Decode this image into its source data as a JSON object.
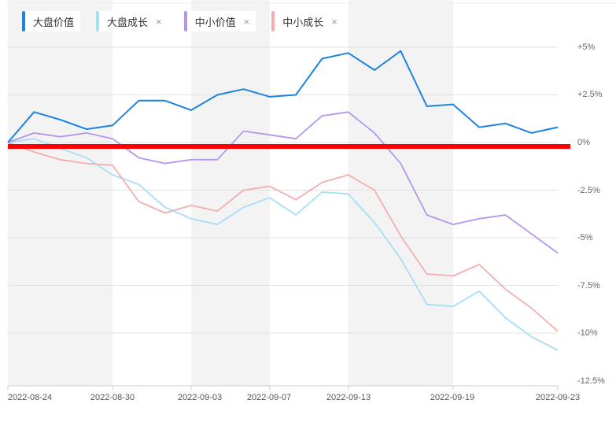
{
  "legend": [
    {
      "label": "大盘价值",
      "color": "#1a84e0",
      "closable": false
    },
    {
      "label": "大盘成长",
      "color": "#a6def7",
      "closable": true
    },
    {
      "label": "中小价值",
      "color": "#b497ea",
      "closable": true
    },
    {
      "label": "中小成长",
      "color": "#f4aeae",
      "closable": true
    }
  ],
  "close_glyph": "×",
  "colors": {
    "zero_line": "#ff0000",
    "band": "#f3f3f3",
    "grid": "#e2e2e2"
  },
  "y_ticks": [
    "+5%",
    "+2.5%",
    "0%",
    "-2.5%",
    "-5%",
    "-7.5%",
    "-10%",
    "-12.5%"
  ],
  "x_ticks": [
    "2022-08-24",
    "2022-08-30",
    "2022-09-03",
    "2022-09-07",
    "2022-09-13",
    "2022-09-19",
    "2022-09-23"
  ],
  "chart_data": {
    "type": "line",
    "title": "",
    "xlabel": "",
    "ylabel": "",
    "ylim": [
      -12.5,
      7.5
    ],
    "y_unit": "%",
    "grid": true,
    "legend_position": "top-left",
    "x_tick_labels": [
      "2022-08-24",
      "2022-08-30",
      "2022-09-03",
      "2022-09-07",
      "2022-09-13",
      "2022-09-19",
      "2022-09-23"
    ],
    "x_tick_indices": [
      0,
      4,
      7,
      10,
      13,
      17,
      21
    ],
    "x": [
      0,
      1,
      2,
      3,
      4,
      5,
      6,
      7,
      8,
      9,
      10,
      11,
      12,
      13,
      14,
      15,
      16,
      17,
      18,
      19,
      20,
      21
    ],
    "series": [
      {
        "name": "大盘价值",
        "color": "#1a84e0",
        "values": [
          0.0,
          1.6,
          1.2,
          0.7,
          0.9,
          2.2,
          2.2,
          1.7,
          2.5,
          2.8,
          2.4,
          2.5,
          4.4,
          4.7,
          3.8,
          4.8,
          1.9,
          2.0,
          0.8,
          1.0,
          0.5,
          0.8
        ]
      },
      {
        "name": "大盘成长",
        "color": "#a6def7",
        "values": [
          0.0,
          0.2,
          -0.3,
          -0.8,
          -1.7,
          -2.2,
          -3.4,
          -4.0,
          -4.3,
          -3.4,
          -2.9,
          -3.8,
          -2.6,
          -2.7,
          -4.2,
          -6.1,
          -8.5,
          -8.6,
          -7.8,
          -9.2,
          -10.2,
          -10.9
        ]
      },
      {
        "name": "中小价值",
        "color": "#b497ea",
        "values": [
          0.0,
          0.5,
          0.3,
          0.5,
          0.2,
          -0.8,
          -1.1,
          -0.9,
          -0.9,
          0.6,
          0.4,
          0.2,
          1.4,
          1.6,
          0.5,
          -1.1,
          -3.8,
          -4.3,
          -4.0,
          -3.8,
          -4.8,
          -5.8
        ]
      },
      {
        "name": "中小成长",
        "color": "#f4aeae",
        "values": [
          0.0,
          -0.5,
          -0.9,
          -1.1,
          -1.2,
          -3.1,
          -3.7,
          -3.3,
          -3.6,
          -2.5,
          -2.3,
          -3.0,
          -2.1,
          -1.7,
          -2.5,
          -4.9,
          -6.9,
          -7.0,
          -6.4,
          -7.7,
          -8.7,
          -9.9
        ]
      }
    ],
    "annotations": [
      {
        "type": "hline",
        "y": 0,
        "color": "#ff0000"
      }
    ]
  }
}
